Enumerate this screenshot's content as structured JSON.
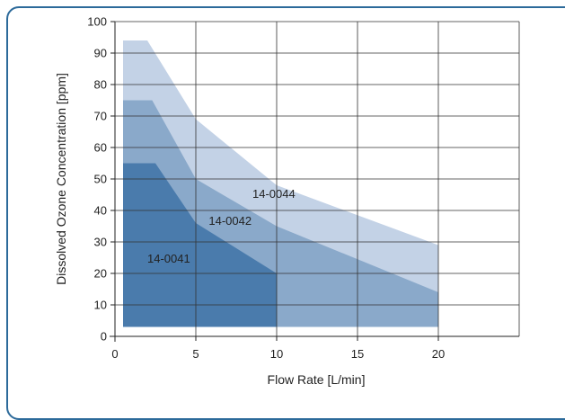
{
  "chart_data": {
    "type": "area",
    "xlabel": "Flow Rate [L/min]",
    "ylabel": "Dissolved Ozone Concentration [ppm]",
    "xlim": [
      0,
      25
    ],
    "ylim": [
      0,
      100
    ],
    "xticks": [
      0,
      5,
      10,
      15,
      20
    ],
    "yticks": [
      0,
      10,
      20,
      30,
      40,
      50,
      60,
      70,
      80,
      90,
      100
    ],
    "grid": true,
    "series": [
      {
        "name": "14-0044",
        "color": "#c3d2e6",
        "polygon": [
          [
            0.5,
            3
          ],
          [
            0.5,
            94
          ],
          [
            2,
            94
          ],
          [
            5,
            69
          ],
          [
            10,
            48
          ],
          [
            20,
            29
          ],
          [
            20,
            3
          ]
        ]
      },
      {
        "name": "14-0042",
        "color": "#8aa9ca",
        "polygon": [
          [
            0.5,
            3
          ],
          [
            0.5,
            75
          ],
          [
            2.3,
            75
          ],
          [
            5,
            50
          ],
          [
            10,
            35
          ],
          [
            20,
            14
          ],
          [
            20,
            3
          ]
        ]
      },
      {
        "name": "14-0041",
        "color": "#4a7bac",
        "polygon": [
          [
            0.5,
            3
          ],
          [
            0.5,
            55
          ],
          [
            2.5,
            55
          ],
          [
            5,
            36
          ],
          [
            10,
            20
          ],
          [
            10,
            3
          ]
        ]
      }
    ]
  }
}
